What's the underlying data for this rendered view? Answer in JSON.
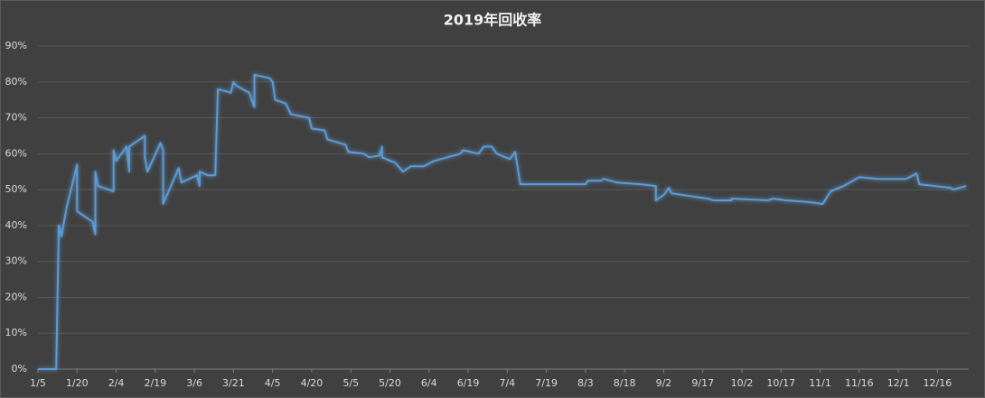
{
  "chart_data": {
    "type": "line",
    "title": "2019年回收率",
    "x": [
      "1/5",
      "1/12",
      "1/13",
      "1/14",
      "1/16",
      "1/20",
      "1/20",
      "1/26",
      "1/27",
      "1/27",
      "1/28",
      "2/3",
      "2/3",
      "2/4",
      "2/8",
      "2/9",
      "2/9",
      "2/15",
      "2/15",
      "2/16",
      "2/21",
      "2/22",
      "2/22",
      "2/28",
      "3/1",
      "3/7",
      "3/8",
      "3/8",
      "3/11",
      "3/14",
      "3/15",
      "3/20",
      "3/21",
      "3/22",
      "3/27",
      "3/29",
      "3/29",
      "4/4",
      "4/5",
      "4/6",
      "4/10",
      "4/12",
      "4/19",
      "4/20",
      "4/25",
      "4/26",
      "5/3",
      "5/4",
      "5/10",
      "5/12",
      "5/16",
      "5/17",
      "5/17",
      "5/22",
      "5/25",
      "5/28",
      "6/2",
      "6/6",
      "6/11",
      "6/16",
      "6/17",
      "6/23",
      "6/25",
      "6/28",
      "6/30",
      "7/5",
      "7/7",
      "7/8",
      "7/9",
      "8/3",
      "8/4",
      "8/9",
      "8/10",
      "8/15",
      "8/24",
      "8/30",
      "8/30",
      "9/2",
      "9/4",
      "9/5",
      "9/14",
      "9/19",
      "9/21",
      "9/28",
      "9/28",
      "10/12",
      "10/14",
      "10/19",
      "10/28",
      "11/2",
      "11/5",
      "11/10",
      "11/16",
      "11/23",
      "11/28",
      "12/4",
      "12/8",
      "12/9",
      "12/21",
      "12/22",
      "12/27"
    ],
    "series": [
      {
        "name": "回收率",
        "color": "#5b9bd5",
        "values": [
          0,
          0,
          40,
          37,
          45,
          57,
          44,
          41,
          37.5,
          55,
          51,
          49.5,
          61,
          58,
          62,
          55,
          62,
          65,
          59,
          55,
          63,
          61,
          46,
          56,
          52,
          54,
          51,
          55,
          54,
          54,
          78,
          77,
          80,
          79,
          77,
          73,
          82,
          81,
          80,
          75,
          74,
          71,
          70,
          67,
          66.5,
          64,
          62.5,
          60.5,
          60,
          59,
          59.5,
          62,
          59,
          57.5,
          55,
          56.5,
          56.5,
          58,
          59,
          60,
          61,
          60,
          62,
          62,
          60,
          58.5,
          60.5,
          56,
          51.5,
          51.5,
          52.5,
          52.5,
          53,
          52,
          51.5,
          51,
          47,
          48.5,
          50.5,
          49,
          48,
          47.5,
          47,
          47,
          47.5,
          47,
          47.5,
          47,
          46.5,
          46,
          49.5,
          51,
          53.5,
          53,
          53,
          53,
          54.5,
          51.5,
          50.5,
          50,
          51
        ]
      }
    ],
    "xlim": [
      "1/5",
      "12/28"
    ],
    "xticks": [
      "1/5",
      "1/20",
      "2/4",
      "2/19",
      "3/6",
      "3/21",
      "4/5",
      "4/20",
      "5/5",
      "5/20",
      "6/4",
      "6/19",
      "7/4",
      "7/19",
      "8/3",
      "8/18",
      "9/2",
      "9/17",
      "10/2",
      "10/17",
      "11/1",
      "11/16",
      "12/1",
      "12/16"
    ],
    "ylim": [
      0,
      90
    ],
    "yticks": [
      {
        "value": 0,
        "label": "0%"
      },
      {
        "value": 10,
        "label": "10%"
      },
      {
        "value": 20,
        "label": "20%"
      },
      {
        "value": 30,
        "label": "30%"
      },
      {
        "value": 40,
        "label": "40%"
      },
      {
        "value": 50,
        "label": "50%"
      },
      {
        "value": 60,
        "label": "60%"
      },
      {
        "value": 70,
        "label": "70%"
      },
      {
        "value": 80,
        "label": "80%"
      },
      {
        "value": 90,
        "label": "90%"
      }
    ],
    "grid": true
  }
}
